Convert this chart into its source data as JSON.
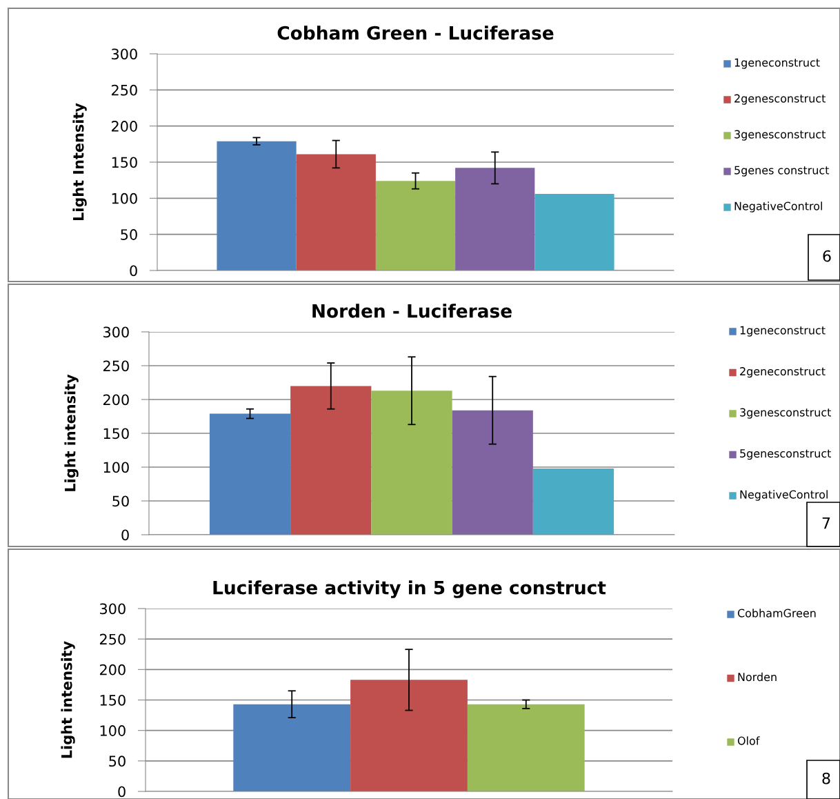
{
  "chart_data": [
    {
      "type": "bar",
      "title": "Cobham Green - Luciferase",
      "ylabel": "Light Intensity",
      "categories": [
        null
      ],
      "ylim": [
        0,
        300
      ],
      "yticks": [
        0,
        50,
        100,
        150,
        200,
        250,
        300
      ],
      "grid": "y",
      "legend": "right",
      "annotations": [
        "6"
      ],
      "series": [
        {
          "name": "1geneconstruct",
          "color": "#4f81bd",
          "values": [
            179
          ],
          "errors": [
            5
          ]
        },
        {
          "name": "2genesconstruct",
          "color": "#c0504d",
          "values": [
            161
          ],
          "errors": [
            19
          ]
        },
        {
          "name": "3genesconstruct",
          "color": "#9bbb59",
          "values": [
            124
          ],
          "errors": [
            11
          ]
        },
        {
          "name": "5genes construct",
          "color": "#8064a2",
          "values": [
            142
          ],
          "errors": [
            22
          ]
        },
        {
          "name": "NegativeControl",
          "color": "#4bacc6",
          "values": [
            106
          ]
        }
      ]
    },
    {
      "type": "bar",
      "title": "Norden - Luciferase",
      "ylabel": "Light intensity",
      "categories": [
        null
      ],
      "ylim": [
        0,
        300
      ],
      "yticks": [
        0,
        50,
        100,
        150,
        200,
        250,
        300
      ],
      "grid": "y",
      "legend": "right",
      "annotations": [
        "7"
      ],
      "series": [
        {
          "name": "1geneconstruct",
          "color": "#4f81bd",
          "values": [
            179
          ],
          "errors": [
            7
          ]
        },
        {
          "name": "2geneconstruct",
          "color": "#c0504d",
          "values": [
            220
          ],
          "errors": [
            34
          ]
        },
        {
          "name": "3genesconstruct",
          "color": "#9bbb59",
          "values": [
            213
          ],
          "errors": [
            50
          ]
        },
        {
          "name": "5genesconstruct",
          "color": "#8064a2",
          "values": [
            184
          ],
          "errors": [
            50
          ]
        },
        {
          "name": "NegativeControl",
          "color": "#4bacc6",
          "values": [
            98
          ]
        }
      ]
    },
    {
      "type": "bar",
      "title": "Luciferase activity in 5 gene construct",
      "ylabel": "Light intensity",
      "categories": [
        null
      ],
      "ylim": [
        0,
        300
      ],
      "yticks": [
        0,
        50,
        100,
        150,
        200,
        250,
        300
      ],
      "grid": "y",
      "legend": "right",
      "annotations": [
        "8"
      ],
      "series": [
        {
          "name": "CobhamGreen",
          "color": "#4f81bd",
          "values": [
            143
          ],
          "errors": [
            22
          ]
        },
        {
          "name": "Norden",
          "color": "#c0504d",
          "values": [
            183
          ],
          "errors": [
            50
          ]
        },
        {
          "name": "Olof",
          "color": "#9bbb59",
          "values": [
            143
          ],
          "errors": [
            7
          ]
        }
      ]
    }
  ]
}
